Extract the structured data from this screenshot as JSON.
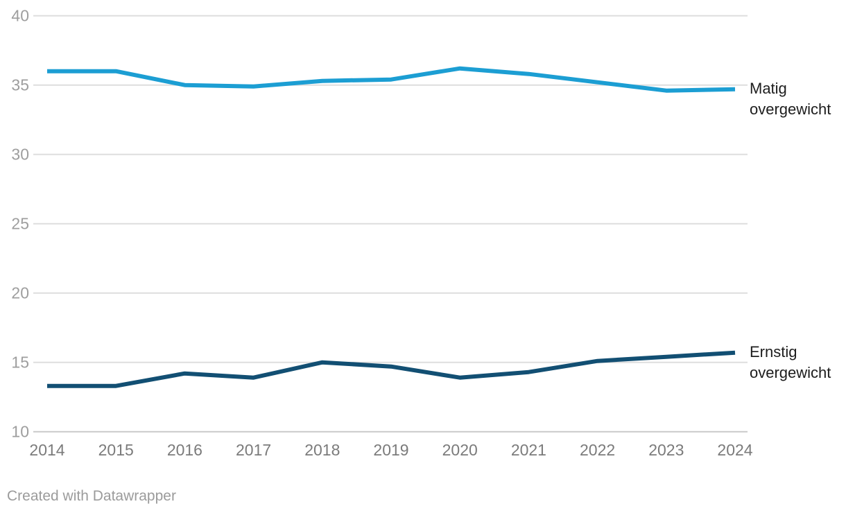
{
  "chart_data": {
    "type": "line",
    "x": [
      2014,
      2015,
      2016,
      2017,
      2018,
      2019,
      2020,
      2021,
      2022,
      2023,
      2024
    ],
    "series": [
      {
        "name": "Matig overgewicht",
        "color": "#1c9ed3",
        "values": [
          36.0,
          36.0,
          35.0,
          34.9,
          35.3,
          35.4,
          36.2,
          35.8,
          35.2,
          34.6,
          34.7
        ]
      },
      {
        "name": "Ernstig overgewicht",
        "color": "#124f73",
        "values": [
          13.3,
          13.3,
          14.2,
          13.9,
          15.0,
          14.7,
          13.9,
          14.3,
          15.1,
          15.4,
          15.7
        ]
      }
    ],
    "title": "",
    "xlabel": "",
    "ylabel": "",
    "ylim": [
      10,
      40
    ],
    "yticks": [
      10,
      15,
      20,
      25,
      30,
      35,
      40
    ],
    "grid": "horizontal",
    "legend": "direct-labels-right",
    "colors": {
      "gridline": "#dedede",
      "baseline_gridline": "#c9c9c9",
      "y_tick_text": "#9e9e9e",
      "x_tick_text": "#7b7b7b",
      "series_label_text": "#1d1d1d"
    }
  },
  "footer": {
    "attribution": "Created with Datawrapper"
  }
}
